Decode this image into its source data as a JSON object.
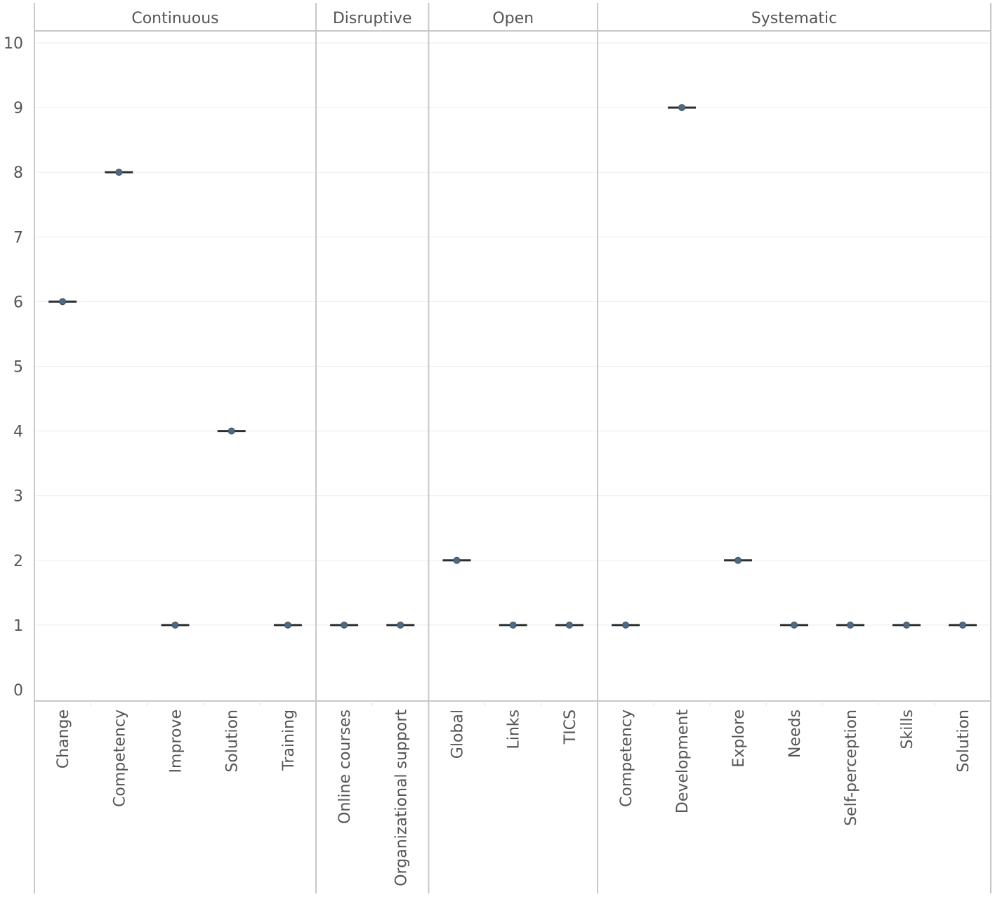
{
  "chart_data": {
    "type": "scatter",
    "title": "",
    "xlabel": "",
    "ylabel": "",
    "ylim": [
      0,
      10
    ],
    "yticks": [
      0,
      1,
      2,
      3,
      4,
      5,
      6,
      7,
      8,
      9,
      10
    ],
    "grid": true,
    "colors": {
      "point": "#4e6a84",
      "mark": "#2b2f33",
      "frame": "#c8c8c8",
      "text": "#555555"
    },
    "panels": [
      {
        "name": "Continuous",
        "categories": [
          "Change",
          "Competency",
          "Improve",
          "Solution",
          "Training"
        ],
        "values": [
          6,
          8,
          1,
          4,
          1
        ]
      },
      {
        "name": "Disruptive",
        "categories": [
          "Online courses",
          "Organizational support"
        ],
        "values": [
          1,
          1
        ]
      },
      {
        "name": "Open",
        "categories": [
          "Global",
          "Links",
          "TICS"
        ],
        "values": [
          2,
          1,
          1
        ]
      },
      {
        "name": "Systematic",
        "categories": [
          "Competency",
          "Development",
          "Explore",
          "Needs",
          "Self-perception",
          "Skills",
          "Solution"
        ],
        "values": [
          1,
          9,
          2,
          1,
          1,
          1,
          1
        ]
      }
    ]
  }
}
